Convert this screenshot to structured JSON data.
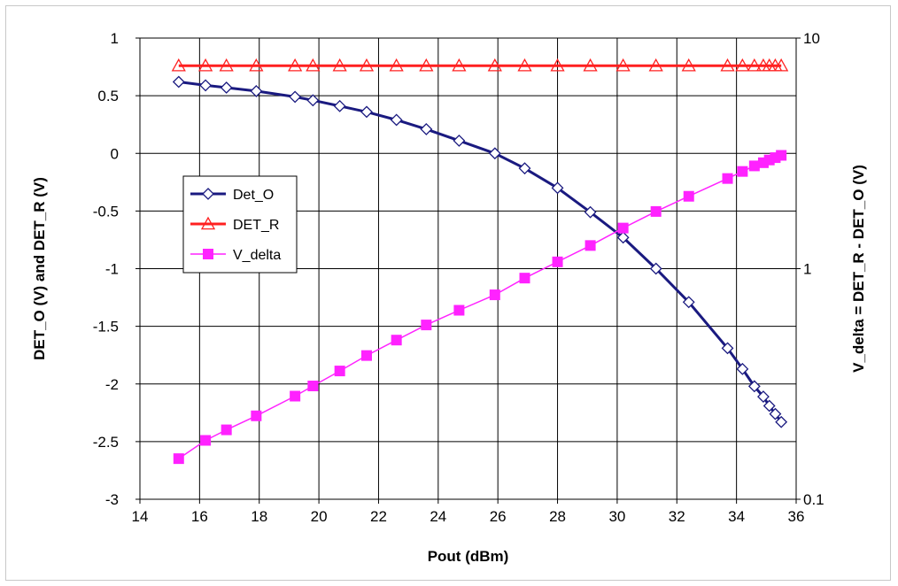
{
  "chart_data": {
    "type": "line",
    "title": "",
    "xlabel": "Pout (dBm)",
    "ylabel": "DET_O (V) and DET_R (V)",
    "y2label": "V_delta = DET_R - DET_O (V)",
    "xlim": [
      14,
      36
    ],
    "ylim": [
      -3,
      1
    ],
    "y2lim": [
      0.1,
      10
    ],
    "y2scale": "log",
    "grid": true,
    "legend_placement": "left-center",
    "x_ticks": [
      "14",
      "16",
      "18",
      "20",
      "22",
      "24",
      "26",
      "28",
      "30",
      "32",
      "34",
      "36"
    ],
    "y_ticks": [
      "1",
      "0.5",
      "0",
      "-0.5",
      "-1",
      "-1.5",
      "-2",
      "-2.5",
      "-3"
    ],
    "y2_ticks": [
      "10",
      "1",
      "0.1"
    ],
    "x": [
      15.3,
      16.2,
      16.9,
      17.9,
      19.2,
      19.8,
      20.7,
      21.6,
      22.6,
      23.6,
      24.7,
      25.9,
      26.9,
      28.0,
      29.1,
      30.2,
      31.3,
      32.4,
      33.7,
      34.2,
      34.6,
      34.9,
      35.1,
      35.3,
      35.5
    ],
    "series": [
      {
        "name": "Det_O",
        "axis": "left",
        "color": "#1a1a80",
        "marker": "diamond",
        "values": [
          0.62,
          0.59,
          0.57,
          0.54,
          0.49,
          0.46,
          0.41,
          0.36,
          0.29,
          0.21,
          0.11,
          0.0,
          -0.13,
          -0.3,
          -0.51,
          -0.73,
          -1.0,
          -1.29,
          -1.69,
          -1.87,
          -2.02,
          -2.11,
          -2.19,
          -2.26,
          -2.33
        ]
      },
      {
        "name": "DET_R",
        "axis": "left",
        "color": "#ff2020",
        "marker": "triangle",
        "values": [
          0.76,
          0.76,
          0.76,
          0.76,
          0.76,
          0.76,
          0.76,
          0.76,
          0.76,
          0.76,
          0.76,
          0.76,
          0.76,
          0.76,
          0.76,
          0.76,
          0.76,
          0.76,
          0.76,
          0.76,
          0.76,
          0.76,
          0.76,
          0.76,
          0.76
        ]
      },
      {
        "name": "V_delta",
        "axis": "right",
        "color": "#ff22ff",
        "marker": "square",
        "values": [
          0.15,
          0.18,
          0.2,
          0.23,
          0.28,
          0.31,
          0.36,
          0.42,
          0.49,
          0.57,
          0.66,
          0.77,
          0.91,
          1.07,
          1.26,
          1.5,
          1.77,
          2.06,
          2.46,
          2.64,
          2.79,
          2.88,
          2.96,
          3.03,
          3.1
        ]
      }
    ]
  }
}
